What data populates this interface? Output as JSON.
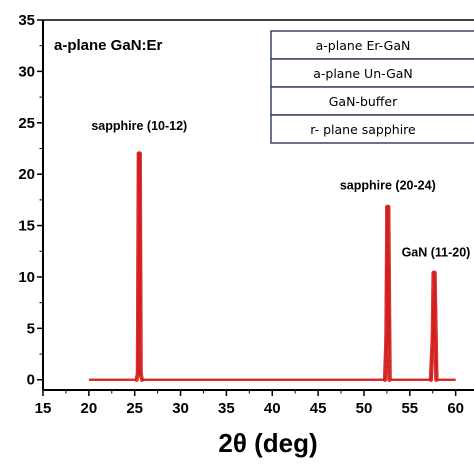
{
  "chart_data": {
    "type": "line",
    "title": "a-plane GaN:Er",
    "xlabel": "2θ (deg)",
    "ylabel": "",
    "xlim": [
      15,
      62
    ],
    "ylim": [
      -1,
      35
    ],
    "x_ticks": [
      15,
      20,
      25,
      30,
      35,
      40,
      45,
      50,
      55,
      60
    ],
    "y_ticks": [
      0,
      5,
      10,
      15,
      20,
      25,
      30,
      35
    ],
    "legend": {
      "placement": "top-right",
      "entries": [
        "a-plane  Er-GaN",
        "a-plane Un-GaN",
        "GaN-buffer",
        "r- plane sapphire"
      ]
    },
    "series": [
      {
        "color": "#d42020",
        "x": [
          20,
          25.2,
          25.35,
          25.45,
          25.55,
          25.65,
          25.8,
          52.3,
          52.45,
          52.55,
          52.65,
          52.8,
          57.3,
          57.5,
          57.6,
          57.7,
          57.9,
          60
        ],
        "y": [
          0,
          0,
          0.6,
          22,
          22,
          0.6,
          0,
          0,
          4,
          16.8,
          16.8,
          0,
          0,
          4,
          10.4,
          10.4,
          0,
          0
        ]
      }
    ],
    "annotations": [
      {
        "text": "sapphire (10-12)",
        "x": 25.5,
        "y": 24.3
      },
      {
        "text": "sapphire (20-24)",
        "x": 52.6,
        "y": 18.5
      },
      {
        "text": "GaN (11-20)",
        "x": 57.7,
        "y": 12
      }
    ]
  }
}
